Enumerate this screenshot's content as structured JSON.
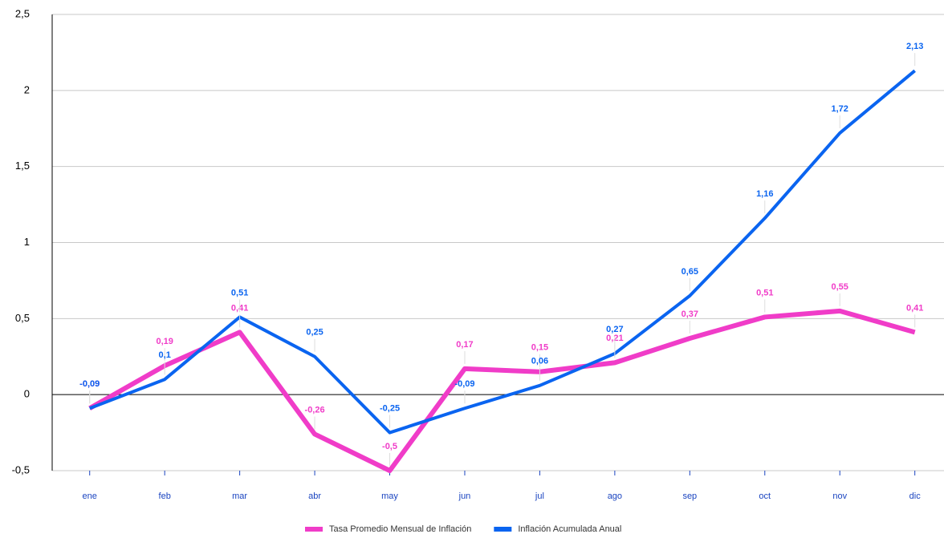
{
  "chart_data": {
    "type": "line",
    "categories": [
      "ene",
      "feb",
      "mar",
      "abr",
      "may",
      "jun",
      "jul",
      "ago",
      "sep",
      "oct",
      "nov",
      "dic"
    ],
    "series": [
      {
        "name": "Tasa Promedio Mensual de Inflación",
        "color": "#f03cc8",
        "values": [
          -0.09,
          0.19,
          0.41,
          -0.26,
          -0.5,
          0.17,
          0.15,
          0.21,
          0.37,
          0.51,
          0.55,
          0.41
        ],
        "value_labels": [
          "-0,09",
          "0,19",
          "0,41",
          "-0,26",
          "-0,5",
          "0,17",
          "0,15",
          "0,21",
          "0,37",
          "0,51",
          "0,55",
          "0,41"
        ]
      },
      {
        "name": "Inflación Acumulada Anual",
        "color": "#0a64f0",
        "values": [
          -0.09,
          0.1,
          0.51,
          0.25,
          -0.25,
          -0.09,
          0.06,
          0.27,
          0.65,
          1.16,
          1.72,
          2.13
        ],
        "value_labels": [
          "-0,09",
          "0,1",
          "0,51",
          "0,25",
          "-0,25",
          "-0,09",
          "0,06",
          "0,27",
          "0,65",
          "1,16",
          "1,72",
          "2,13"
        ]
      }
    ],
    "ylim": [
      -0.5,
      2.5
    ],
    "yticks": [
      {
        "value": -0.5,
        "label": "-0,5"
      },
      0,
      {
        "value": 0.5,
        "label": "0,5"
      },
      1,
      {
        "value": 1.5,
        "label": "1,5"
      },
      2,
      {
        "value": 2.5,
        "label": "2,5"
      }
    ],
    "grid": true,
    "legend": "bottom"
  }
}
